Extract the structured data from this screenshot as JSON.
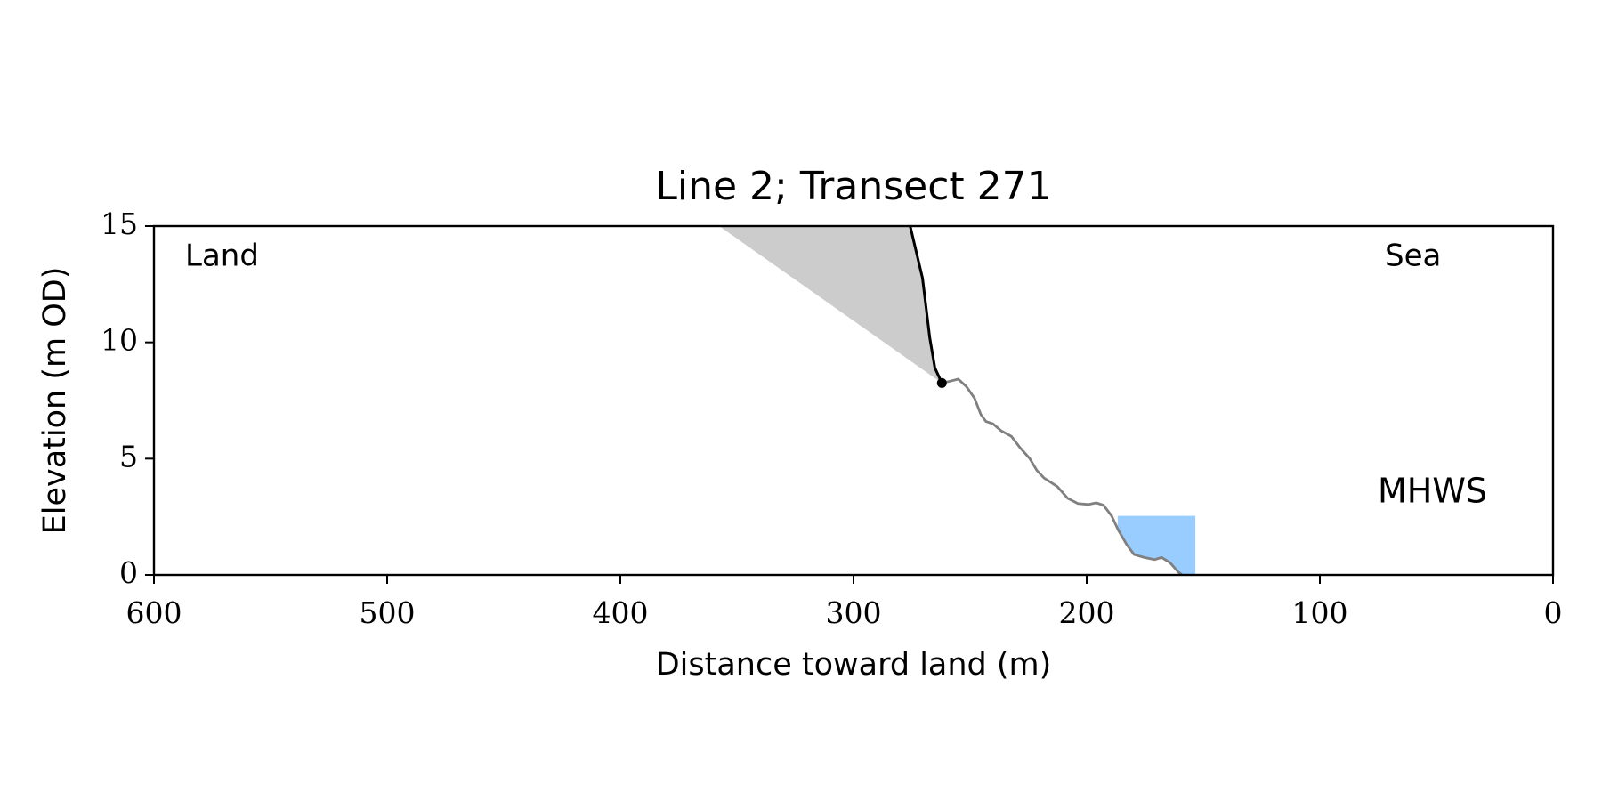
{
  "chart_data": {
    "type": "line",
    "title": "Line 2; Transect 271",
    "x_label": "Distance toward land (m)",
    "y_label": "Elevation (m OD)",
    "xlim": [
      600,
      0
    ],
    "ylim": [
      0,
      15
    ],
    "xticks": [
      600,
      500,
      400,
      300,
      200,
      100,
      0
    ],
    "yticks": [
      0,
      5,
      10,
      15
    ],
    "annotations": [
      {
        "text": "Land"
      },
      {
        "text": "Sea"
      },
      {
        "text": "MHWS",
        "color": "#6699cc"
      }
    ],
    "profile": {
      "color": "#808080",
      "x": [
        262.1,
        258.6,
        255.1,
        251.6,
        248.1,
        245.4,
        243.2,
        240.2,
        236.7,
        232.3,
        228.8,
        224.4,
        221.4,
        218.3,
        212.6,
        208.2,
        203.8,
        199.4,
        195.9,
        192.8,
        189.3,
        186.3,
        182.8,
        179.7,
        175.3,
        170.9,
        167.8,
        164.3,
        160.8,
        159.1
      ],
      "values": [
        8.25,
        8.33,
        8.42,
        8.1,
        7.6,
        6.9,
        6.6,
        6.5,
        6.2,
        5.96,
        5.5,
        5.0,
        4.5,
        4.17,
        3.8,
        3.3,
        3.07,
        3.03,
        3.1,
        3.0,
        2.54,
        1.9,
        1.3,
        0.88,
        0.75,
        0.66,
        0.75,
        0.53,
        0.13,
        0
      ]
    },
    "cliff": {
      "color": "#000000",
      "x": [
        275.7,
        270.4,
        267.3,
        265.1,
        262.1
      ],
      "values": [
        15,
        12.76,
        10.2,
        8.9,
        8.25
      ]
    },
    "shade": {
      "color": "#cccccc",
      "x": [
        357.6
      ],
      "values": [
        15
      ]
    },
    "mhws": {
      "color": "#99ccff",
      "level": 2.54,
      "xlim": [
        186.7,
        153.4
      ]
    }
  }
}
